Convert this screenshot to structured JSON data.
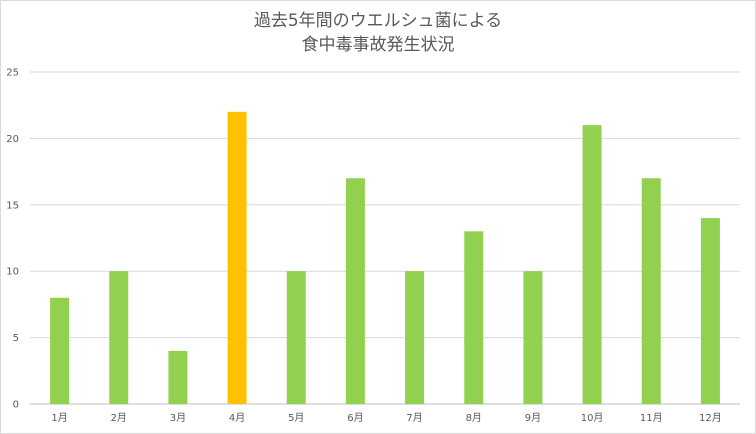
{
  "chart_data": {
    "type": "bar",
    "title_lines": [
      "過去5年間のウエルシュ菌による",
      "食中毒事故発生状況"
    ],
    "categories": [
      "1月",
      "2月",
      "3月",
      "4月",
      "5月",
      "6月",
      "7月",
      "8月",
      "9月",
      "10月",
      "11月",
      "12月"
    ],
    "values": [
      8,
      10,
      4,
      22,
      10,
      17,
      10,
      13,
      10,
      21,
      17,
      14
    ],
    "highlight_category": "4月",
    "ylim": [
      0,
      25
    ],
    "yticks": [
      0,
      5,
      10,
      15,
      20,
      25
    ],
    "grid": true,
    "legend": "none",
    "colors": {
      "bar": "#92d050",
      "highlight": "#ffc000",
      "grid": "#d9d9d9",
      "axis": "#bfbfbf"
    }
  }
}
